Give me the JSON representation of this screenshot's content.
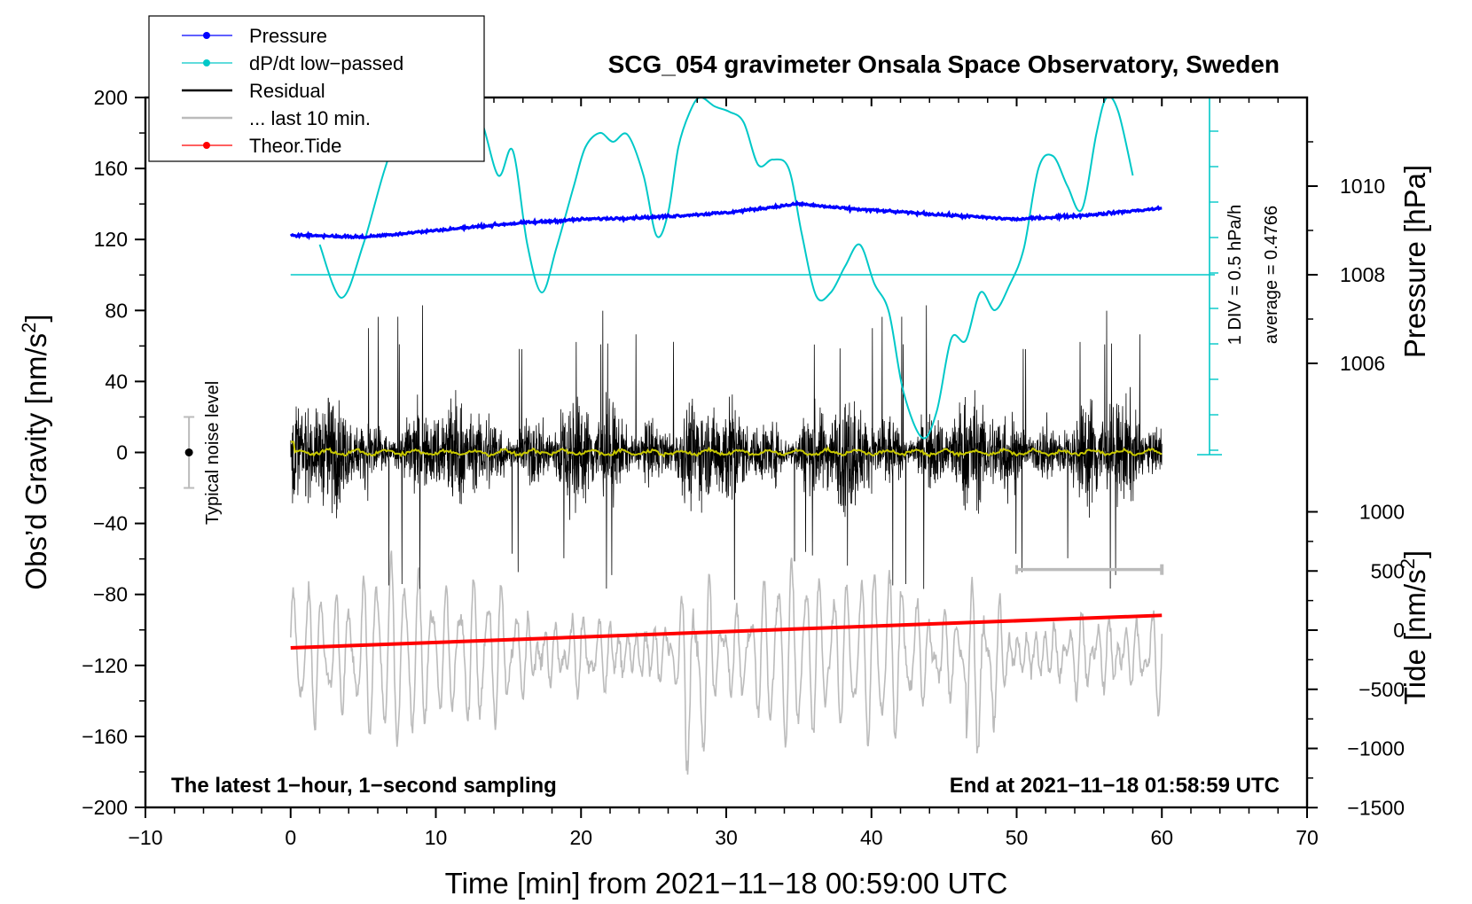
{
  "chart_data": {
    "type": "line",
    "title": "SCG_054 gravimeter Onsala Space Observatory, Sweden",
    "xlabel": "Time [min] from 2021−11−18 00:59:00 UTC",
    "ylabel_left": "Obs’d Gravity [nm/s",
    "ylabel_left_sup": "2",
    "ylabel_left_end": "]",
    "ylabel_right_pressure": "Pressure [hPa]",
    "ylabel_right_tide": "Tide [nm/s",
    "ylabel_right_tide_sup": "2",
    "ylabel_right_tide_end": "]",
    "xlim": [
      -10,
      70
    ],
    "ylim": [
      -200,
      200
    ],
    "pressure_lim": [
      1004,
      1012
    ],
    "tide_lim": [
      -1500,
      1500
    ],
    "x_ticks": [
      "−10",
      "0",
      "10",
      "20",
      "30",
      "40",
      "50",
      "60",
      "70"
    ],
    "y_ticks": [
      "200",
      "160",
      "120",
      "80",
      "40",
      "0",
      "−40",
      "−80",
      "−120",
      "−160",
      "−200"
    ],
    "pressure_ticks": [
      "1010",
      "1008",
      "1006"
    ],
    "tide_ticks": [
      "1000",
      "500",
      "0",
      "−500",
      "−1000",
      "−1500"
    ],
    "annotation_left": "The latest 1−hour, 1−second sampling",
    "annotation_right": "End at 2021−11−18 01:58:59 UTC",
    "noise_label": "Typical noise level",
    "div_label": "1 DIV = 0.5 hPa/h",
    "average_label": "average = 0.4766",
    "legend": [
      {
        "label": "Pressure",
        "color": "#0000ff",
        "marker": true
      },
      {
        "label": "dP/dt low−passed",
        "color": "#00c8c8",
        "marker": true
      },
      {
        "label": "Residual",
        "color": "#000000",
        "marker": false
      },
      {
        "label": "... last 10 min.",
        "color": "#bbbbbb",
        "marker": false
      },
      {
        "label": "Theor.Tide",
        "color": "#ff0000",
        "marker": true
      }
    ],
    "series": {
      "pressure": {
        "name": "Pressure",
        "color": "#0000ff",
        "unit": "hPa",
        "x": [
          0,
          5,
          10,
          15,
          20,
          25,
          30,
          35,
          38,
          45,
          50,
          55,
          60
        ],
        "y": [
          1008.9,
          1008.85,
          1009.0,
          1009.15,
          1009.25,
          1009.3,
          1009.4,
          1009.6,
          1009.5,
          1009.35,
          1009.25,
          1009.35,
          1009.5
        ]
      },
      "dpdt": {
        "name": "dP/dt low−passed",
        "color": "#00c8c8",
        "unit": "hPa/h",
        "center_pressure": 1008,
        "x": [
          2,
          3.5,
          5,
          6.5,
          8,
          9,
          10,
          11,
          12,
          13,
          14.3,
          15.3,
          16.3,
          17.3,
          18.3,
          19.5,
          20.3,
          21.3,
          22.2,
          23.2,
          24.3,
          25.2,
          26,
          26.7,
          27.5,
          28.2,
          29.2,
          30.2,
          31.2,
          32.2,
          33.2,
          34.3,
          35.2,
          36.2,
          37.2,
          38.2,
          39.2,
          40.2,
          41.2,
          42.2,
          43.5,
          44.5,
          45.5,
          46.5,
          47.5,
          48.5,
          49.5,
          50.5,
          51.5,
          52.5,
          53.5,
          54.5,
          55.5,
          56.2,
          57,
          58
        ],
        "y": [
          0.85,
          -0.65,
          0.85,
          3.0,
          4.6,
          3.3,
          3.95,
          3.85,
          3.3,
          4.4,
          2.8,
          3.5,
          0.85,
          -0.5,
          0.75,
          2.5,
          3.6,
          4.0,
          3.75,
          3.95,
          2.8,
          1.1,
          1.75,
          3.6,
          4.6,
          5.0,
          4.75,
          4.6,
          4.3,
          3.1,
          3.25,
          3.0,
          1.15,
          -0.6,
          -0.5,
          0.25,
          0.85,
          -0.25,
          -1.05,
          -3.3,
          -4.6,
          -3.85,
          -1.8,
          -1.85,
          -0.5,
          -1.0,
          -0.3,
          0.75,
          3.0,
          3.35,
          2.5,
          1.85,
          4.0,
          5.0,
          4.6,
          2.8
        ]
      },
      "residual": {
        "name": "Residual",
        "color": "#000000",
        "unit": "nm/s²",
        "x_range": [
          0,
          60
        ],
        "typical_amplitude": [
          -40,
          40
        ],
        "extremes": [
          -80,
          90
        ]
      },
      "residual_smoothed": {
        "name": "Residual (smoothed)",
        "color": "#c8c800",
        "unit": "nm/s²",
        "x_range": [
          0,
          60
        ],
        "typical_amplitude": [
          -3,
          3
        ]
      },
      "last10": {
        "name": "... last 10 min.",
        "color": "#bbbbbb",
        "unit": "nm/s²",
        "x_range": [
          50,
          60
        ],
        "y": -66
      },
      "tide": {
        "name": "Theor.Tide",
        "color": "#ff0000",
        "unit": "nm/s²",
        "x": [
          0,
          60
        ],
        "y": [
          -150,
          125
        ]
      },
      "secondary_trace": {
        "name": "... last 10 min.",
        "color": "#bbbbbb",
        "unit": "nm/s²",
        "x_range": [
          0,
          60
        ],
        "typical_amplitude_tide_units": [
          -1000,
          500
        ]
      }
    },
    "noise_bar": {
      "x": -7,
      "center": 0,
      "range": [
        -20,
        20
      ]
    }
  }
}
